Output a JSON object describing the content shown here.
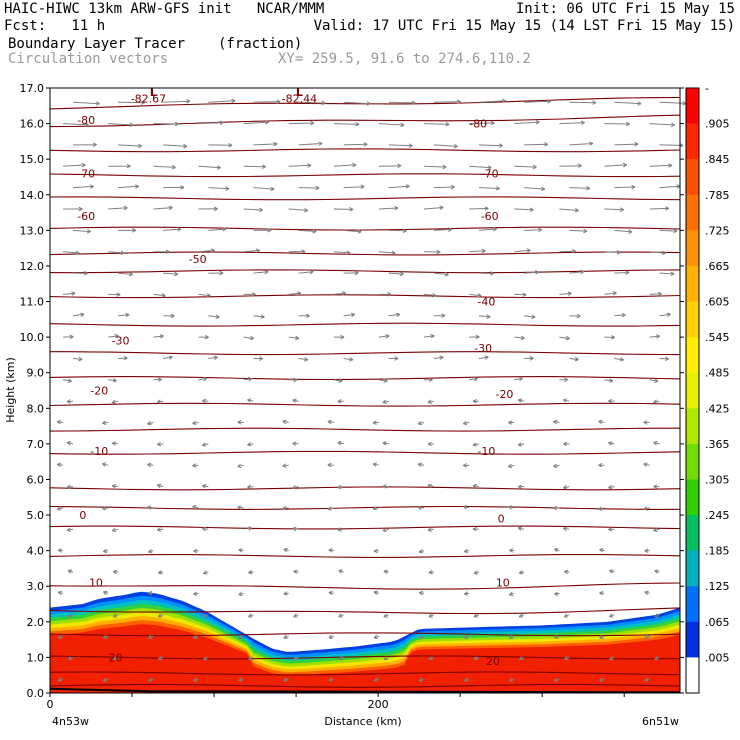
{
  "header": {
    "title": "HAIC-HIWC 13km ARW-GFS init   NCAR/MMM",
    "init": "Init: 06 UTC Fri 15 May 15",
    "fcst": "Fcst:   11 h",
    "valid": "Valid: 17 UTC Fri 15 May 15 (14 LST Fri 15 May 15)",
    "field": "Boundary Layer Tracer",
    "units": "(fraction)",
    "vectors": "Circulation vectors",
    "xy": "XY= 259.5, 91.6 to 274.6,110.2"
  },
  "colors": {
    "contour": "#7a0000",
    "vector": "#808080",
    "tracer_high": "#f02000",
    "tracer_mid": "#f0e000",
    "tracer_low": "#00a0ff"
  },
  "chart_data": {
    "type": "cross-section",
    "xlabel": "Distance (km)",
    "ylabel": "Height (km)",
    "xlim": [
      0,
      384
    ],
    "ylim": [
      0,
      17
    ],
    "x_tick_labels": [
      {
        "x": 0,
        "label": "0"
      },
      {
        "x": 200,
        "label": "200"
      }
    ],
    "x_end_labels": {
      "left": "4n53w",
      "right": "6n51w"
    },
    "y_ticks": [
      0,
      1,
      2,
      3,
      4,
      5,
      6,
      7,
      8,
      9,
      10,
      11,
      12,
      13,
      14,
      15,
      16,
      17
    ],
    "y_tick_labels": [
      "0.0",
      "1.0",
      "2.0",
      "3.0",
      "4.0",
      "5.0",
      "6.0",
      "7.0",
      "8.0",
      "9.0",
      "10.0",
      "11.0",
      "12.0",
      "13.0",
      "14.0",
      "15.0",
      "16.0",
      "17.0"
    ],
    "colorbar": {
      "levels": [
        "-",
        ".905",
        ".845",
        ".785",
        ".725",
        ".665",
        ".605",
        ".545",
        ".485",
        ".425",
        ".365",
        ".305",
        ".245",
        ".185",
        ".125",
        ".065",
        ".005"
      ],
      "colors": [
        "#ff0000",
        "#ff2800",
        "#ff5000",
        "#ff7000",
        "#ff9000",
        "#ffb000",
        "#ffd000",
        "#ffee00",
        "#e8f000",
        "#b0e800",
        "#70dc00",
        "#30d000",
        "#00c060",
        "#00b0c0",
        "#0070ff",
        "#0030e0",
        "#ffffff"
      ]
    },
    "tracer_top": [
      {
        "x": 0,
        "h": 2.4
      },
      {
        "x": 10,
        "h": 2.45
      },
      {
        "x": 20,
        "h": 2.5
      },
      {
        "x": 30,
        "h": 2.65
      },
      {
        "x": 45,
        "h": 2.75
      },
      {
        "x": 55,
        "h": 2.85
      },
      {
        "x": 65,
        "h": 2.8
      },
      {
        "x": 80,
        "h": 2.6
      },
      {
        "x": 95,
        "h": 2.3
      },
      {
        "x": 110,
        "h": 1.9
      },
      {
        "x": 125,
        "h": 1.5
      },
      {
        "x": 135,
        "h": 1.25
      },
      {
        "x": 145,
        "h": 1.15
      },
      {
        "x": 160,
        "h": 1.2
      },
      {
        "x": 185,
        "h": 1.3
      },
      {
        "x": 210,
        "h": 1.45
      },
      {
        "x": 225,
        "h": 1.8
      },
      {
        "x": 260,
        "h": 1.85
      },
      {
        "x": 300,
        "h": 1.9
      },
      {
        "x": 340,
        "h": 2.0
      },
      {
        "x": 370,
        "h": 2.2
      },
      {
        "x": 384,
        "h": 2.4
      }
    ],
    "temperature_labels": [
      {
        "x": 60,
        "y": 16.7,
        "label": "-82.67"
      },
      {
        "x": 152,
        "y": 16.7,
        "label": "-82.44"
      },
      {
        "x": 22,
        "y": 16.1,
        "label": "-80"
      },
      {
        "x": 261,
        "y": 16.0,
        "label": "-80"
      },
      {
        "x": 22,
        "y": 14.6,
        "label": "-70"
      },
      {
        "x": 268,
        "y": 14.6,
        "label": "-70"
      },
      {
        "x": 22,
        "y": 13.4,
        "label": "-60"
      },
      {
        "x": 268,
        "y": 13.4,
        "label": "-60"
      },
      {
        "x": 90,
        "y": 12.2,
        "label": "-50"
      },
      {
        "x": 266,
        "y": 11.0,
        "label": "-40"
      },
      {
        "x": 43,
        "y": 9.9,
        "label": "-30"
      },
      {
        "x": 264,
        "y": 9.7,
        "label": "-30"
      },
      {
        "x": 30,
        "y": 8.5,
        "label": "-20"
      },
      {
        "x": 277,
        "y": 8.4,
        "label": "-20"
      },
      {
        "x": 30,
        "y": 6.8,
        "label": "-10"
      },
      {
        "x": 266,
        "y": 6.8,
        "label": "-10"
      },
      {
        "x": 20,
        "y": 5.0,
        "label": "0"
      },
      {
        "x": 275,
        "y": 4.9,
        "label": "0"
      },
      {
        "x": 28,
        "y": 3.1,
        "label": "10"
      },
      {
        "x": 276,
        "y": 3.1,
        "label": "10"
      },
      {
        "x": 40,
        "y": 1.0,
        "label": "20"
      },
      {
        "x": 270,
        "y": 0.9,
        "label": "20"
      }
    ],
    "low_markers": [
      {
        "x": 63,
        "y": 17.0,
        "label": "L"
      },
      {
        "x": 152,
        "y": 17.0,
        "label": "L"
      }
    ]
  }
}
